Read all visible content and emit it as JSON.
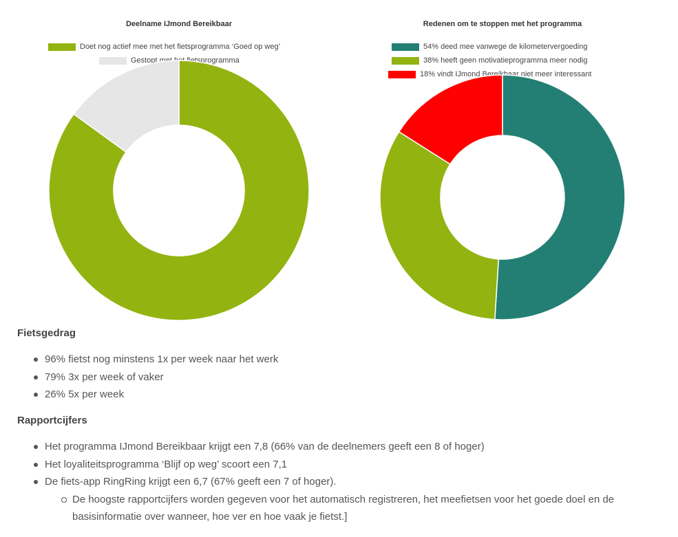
{
  "chart_data": [
    {
      "type": "pie",
      "title": "Deelname IJmond Bereikbaar",
      "legend_position": "top",
      "slices": [
        {
          "label": "Doet nog actief mee met het fietsprogramma ‘Goed op weg’",
          "value": 85,
          "color": "#93B311"
        },
        {
          "label": "Gestopt met het fietsprogramma",
          "value": 15,
          "color": "#E6E6E6"
        }
      ]
    },
    {
      "type": "pie",
      "title": "Redenen om te stoppen met het programma",
      "legend_position": "top",
      "slices": [
        {
          "label": "54% deed mee vanwege de kilometervergoeding",
          "value": 51,
          "color": "#237F74"
        },
        {
          "label": "38% heeft geen motivatieprogramma meer nodig",
          "value": 33,
          "color": "#93B311"
        },
        {
          "label": "18% vindt IJmond Bereikbaar niet meer interessant",
          "value": 16,
          "color": "#FF0000"
        }
      ]
    }
  ],
  "sections": [
    {
      "heading": "Fietsgedrag",
      "items": [
        {
          "text": "96% fietst nog minstens 1x per week naar het werk",
          "level": 1
        },
        {
          "text": "79% 3x per week of vaker",
          "level": 1
        },
        {
          "text": "26% 5x per week",
          "level": 1
        }
      ]
    },
    {
      "heading": "Rapportcijfers",
      "items": [
        {
          "text": "Het programma IJmond Bereikbaar krijgt een 7,8 (66% van de deelnemers geeft een 8 of hoger)",
          "level": 1
        },
        {
          "text": "Het loyaliteitsprogramma ‘Blijf op weg’ scoort een 7,1",
          "level": 1
        },
        {
          "text": "De fiets-app RingRing krijgt een 6,7 (67% geeft een 7 of hoger).",
          "level": 1
        },
        {
          "text": "De hoogste rapportcijfers worden gegeven voor het automatisch registreren, het meefietsen voor het goede doel en de basisinformatie over wanneer, hoe ver en hoe vaak je fietst.]",
          "level": 2
        }
      ]
    }
  ]
}
